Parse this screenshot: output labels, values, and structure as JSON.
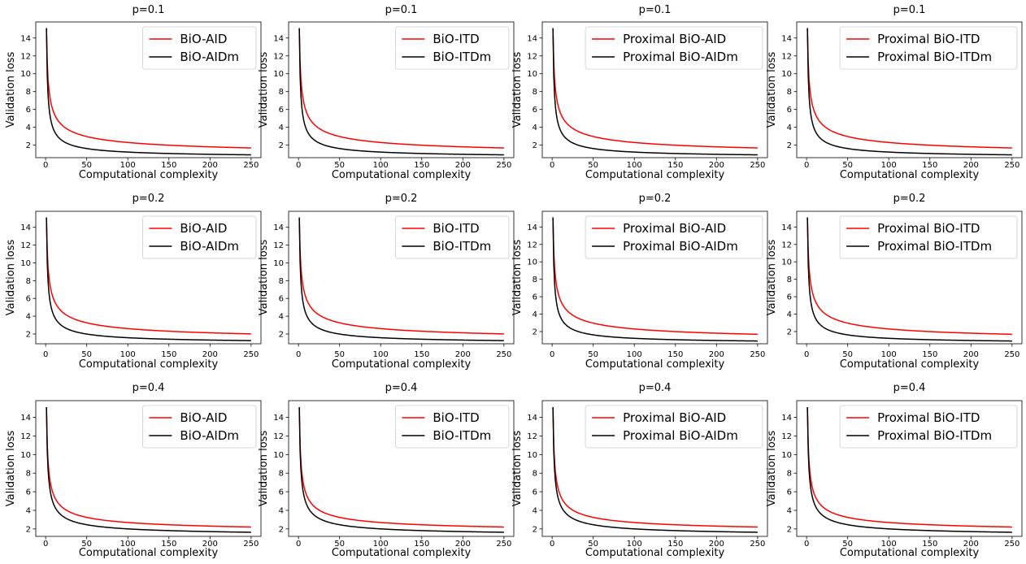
{
  "figure": {
    "xlabel": "Computational complexity",
    "ylabel": "Validation loss",
    "xticks": [
      0,
      50,
      100,
      150,
      200,
      250
    ],
    "yticks": [
      2,
      4,
      6,
      8,
      10,
      12,
      14
    ],
    "colors": {
      "base": "#ff0000",
      "momentum": "#000000"
    }
  },
  "chart_data": [
    {
      "type": "line",
      "title": "p=0.1",
      "xlim": [
        -12,
        262
      ],
      "ylim": [
        0.6,
        15.8
      ],
      "legend": "upper right",
      "series": [
        {
          "name": "BiO-AID",
          "color": "#ff0000",
          "x0": 1,
          "y0": 15.1,
          "yinf": 0.5,
          "k": 2.2
        },
        {
          "name": "BiO-AIDm",
          "color": "#000000",
          "x0": 1,
          "y0": 15.1,
          "yinf": 0.55,
          "k": 1.5
        }
      ]
    },
    {
      "type": "line",
      "title": "p=0.1",
      "xlim": [
        -12,
        262
      ],
      "ylim": [
        0.6,
        15.8
      ],
      "legend": "upper right",
      "series": [
        {
          "name": "BiO-ITD",
          "color": "#ff0000",
          "x0": 1,
          "y0": 15.1,
          "yinf": 0.5,
          "k": 2.2
        },
        {
          "name": "BiO-ITDm",
          "color": "#000000",
          "x0": 1,
          "y0": 15.1,
          "yinf": 0.55,
          "k": 1.5
        }
      ]
    },
    {
      "type": "line",
      "title": "p=0.1",
      "xlim": [
        -12,
        262
      ],
      "ylim": [
        0.6,
        15.8
      ],
      "legend": "upper right",
      "series": [
        {
          "name": "Proximal BiO-AID",
          "color": "#ff0000",
          "x0": 1,
          "y0": 15.1,
          "yinf": 0.5,
          "k": 2.2
        },
        {
          "name": "Proximal BiO-AIDm",
          "color": "#000000",
          "x0": 1,
          "y0": 15.1,
          "yinf": 0.55,
          "k": 1.5
        }
      ]
    },
    {
      "type": "line",
      "title": "p=0.1",
      "xlim": [
        -12,
        262
      ],
      "ylim": [
        0.6,
        15.8
      ],
      "legend": "upper right",
      "series": [
        {
          "name": "Proximal BiO-ITD",
          "color": "#ff0000",
          "x0": 1,
          "y0": 15.1,
          "yinf": 0.5,
          "k": 2.2
        },
        {
          "name": "Proximal BiO-ITDm",
          "color": "#000000",
          "x0": 1,
          "y0": 15.1,
          "yinf": 0.55,
          "k": 1.5
        }
      ]
    },
    {
      "type": "line",
      "title": "p=0.2",
      "xlim": [
        -12,
        262
      ],
      "ylim": [
        0.9,
        15.8
      ],
      "legend": "upper right",
      "series": [
        {
          "name": "BiO-AID",
          "color": "#ff0000",
          "x0": 1,
          "y0": 15.1,
          "yinf": 0.85,
          "k": 2.2
        },
        {
          "name": "BiO-AIDm",
          "color": "#000000",
          "x0": 1,
          "y0": 15.1,
          "yinf": 0.85,
          "k": 1.55
        }
      ]
    },
    {
      "type": "line",
      "title": "p=0.2",
      "xlim": [
        -12,
        262
      ],
      "ylim": [
        0.9,
        15.8
      ],
      "legend": "upper right",
      "series": [
        {
          "name": "BiO-ITD",
          "color": "#ff0000",
          "x0": 1,
          "y0": 15.1,
          "yinf": 0.85,
          "k": 2.2
        },
        {
          "name": "BiO-ITDm",
          "color": "#000000",
          "x0": 1,
          "y0": 15.1,
          "yinf": 0.85,
          "k": 1.55
        }
      ]
    },
    {
      "type": "line",
      "title": "p=0.2",
      "xlim": [
        -12,
        262
      ],
      "ylim": [
        0.6,
        15.8
      ],
      "legend": "upper right",
      "series": [
        {
          "name": "Proximal BiO-AID",
          "color": "#ff0000",
          "x0": 1,
          "y0": 15.1,
          "yinf": 0.5,
          "k": 2.2
        },
        {
          "name": "Proximal BiO-AIDm",
          "color": "#000000",
          "x0": 1,
          "y0": 15.1,
          "yinf": 0.55,
          "k": 1.5
        }
      ]
    },
    {
      "type": "line",
      "title": "p=0.2",
      "xlim": [
        -12,
        262
      ],
      "ylim": [
        0.6,
        15.8
      ],
      "legend": "upper right",
      "series": [
        {
          "name": "Proximal BiO-ITD",
          "color": "#ff0000",
          "x0": 1,
          "y0": 15.1,
          "yinf": 0.5,
          "k": 2.2
        },
        {
          "name": "Proximal BiO-ITDm",
          "color": "#000000",
          "x0": 1,
          "y0": 15.1,
          "yinf": 0.55,
          "k": 1.5
        }
      ]
    },
    {
      "type": "line",
      "title": "p=0.4",
      "xlim": [
        -12,
        262
      ],
      "ylim": [
        1.2,
        15.8
      ],
      "legend": "upper right",
      "series": [
        {
          "name": "BiO-AID",
          "color": "#ff0000",
          "x0": 1,
          "y0": 15.1,
          "yinf": 1.4,
          "k": 1.95
        },
        {
          "name": "BiO-AIDm",
          "color": "#000000",
          "x0": 1,
          "y0": 15.1,
          "yinf": 1.15,
          "k": 1.65
        }
      ]
    },
    {
      "type": "line",
      "title": "p=0.4",
      "xlim": [
        -12,
        262
      ],
      "ylim": [
        1.2,
        15.8
      ],
      "legend": "upper right",
      "series": [
        {
          "name": "BiO-ITD",
          "color": "#ff0000",
          "x0": 1,
          "y0": 15.1,
          "yinf": 1.4,
          "k": 1.95
        },
        {
          "name": "BiO-ITDm",
          "color": "#000000",
          "x0": 1,
          "y0": 15.1,
          "yinf": 1.15,
          "k": 1.65
        }
      ]
    },
    {
      "type": "line",
      "title": "p=0.4",
      "xlim": [
        -12,
        262
      ],
      "ylim": [
        1.2,
        15.8
      ],
      "legend": "upper right",
      "series": [
        {
          "name": "Proximal BiO-AID",
          "color": "#ff0000",
          "x0": 1,
          "y0": 15.1,
          "yinf": 1.4,
          "k": 1.95
        },
        {
          "name": "Proximal BiO-AIDm",
          "color": "#000000",
          "x0": 1,
          "y0": 15.1,
          "yinf": 1.15,
          "k": 1.65
        }
      ]
    },
    {
      "type": "line",
      "title": "p=0.4",
      "xlim": [
        -12,
        262
      ],
      "ylim": [
        1.2,
        15.8
      ],
      "legend": "upper right",
      "series": [
        {
          "name": "Proximal BiO-ITD",
          "color": "#ff0000",
          "x0": 1,
          "y0": 15.1,
          "yinf": 1.4,
          "k": 1.95
        },
        {
          "name": "Proximal BiO-ITDm",
          "color": "#000000",
          "x0": 1,
          "y0": 15.1,
          "yinf": 1.15,
          "k": 1.65
        }
      ]
    }
  ]
}
